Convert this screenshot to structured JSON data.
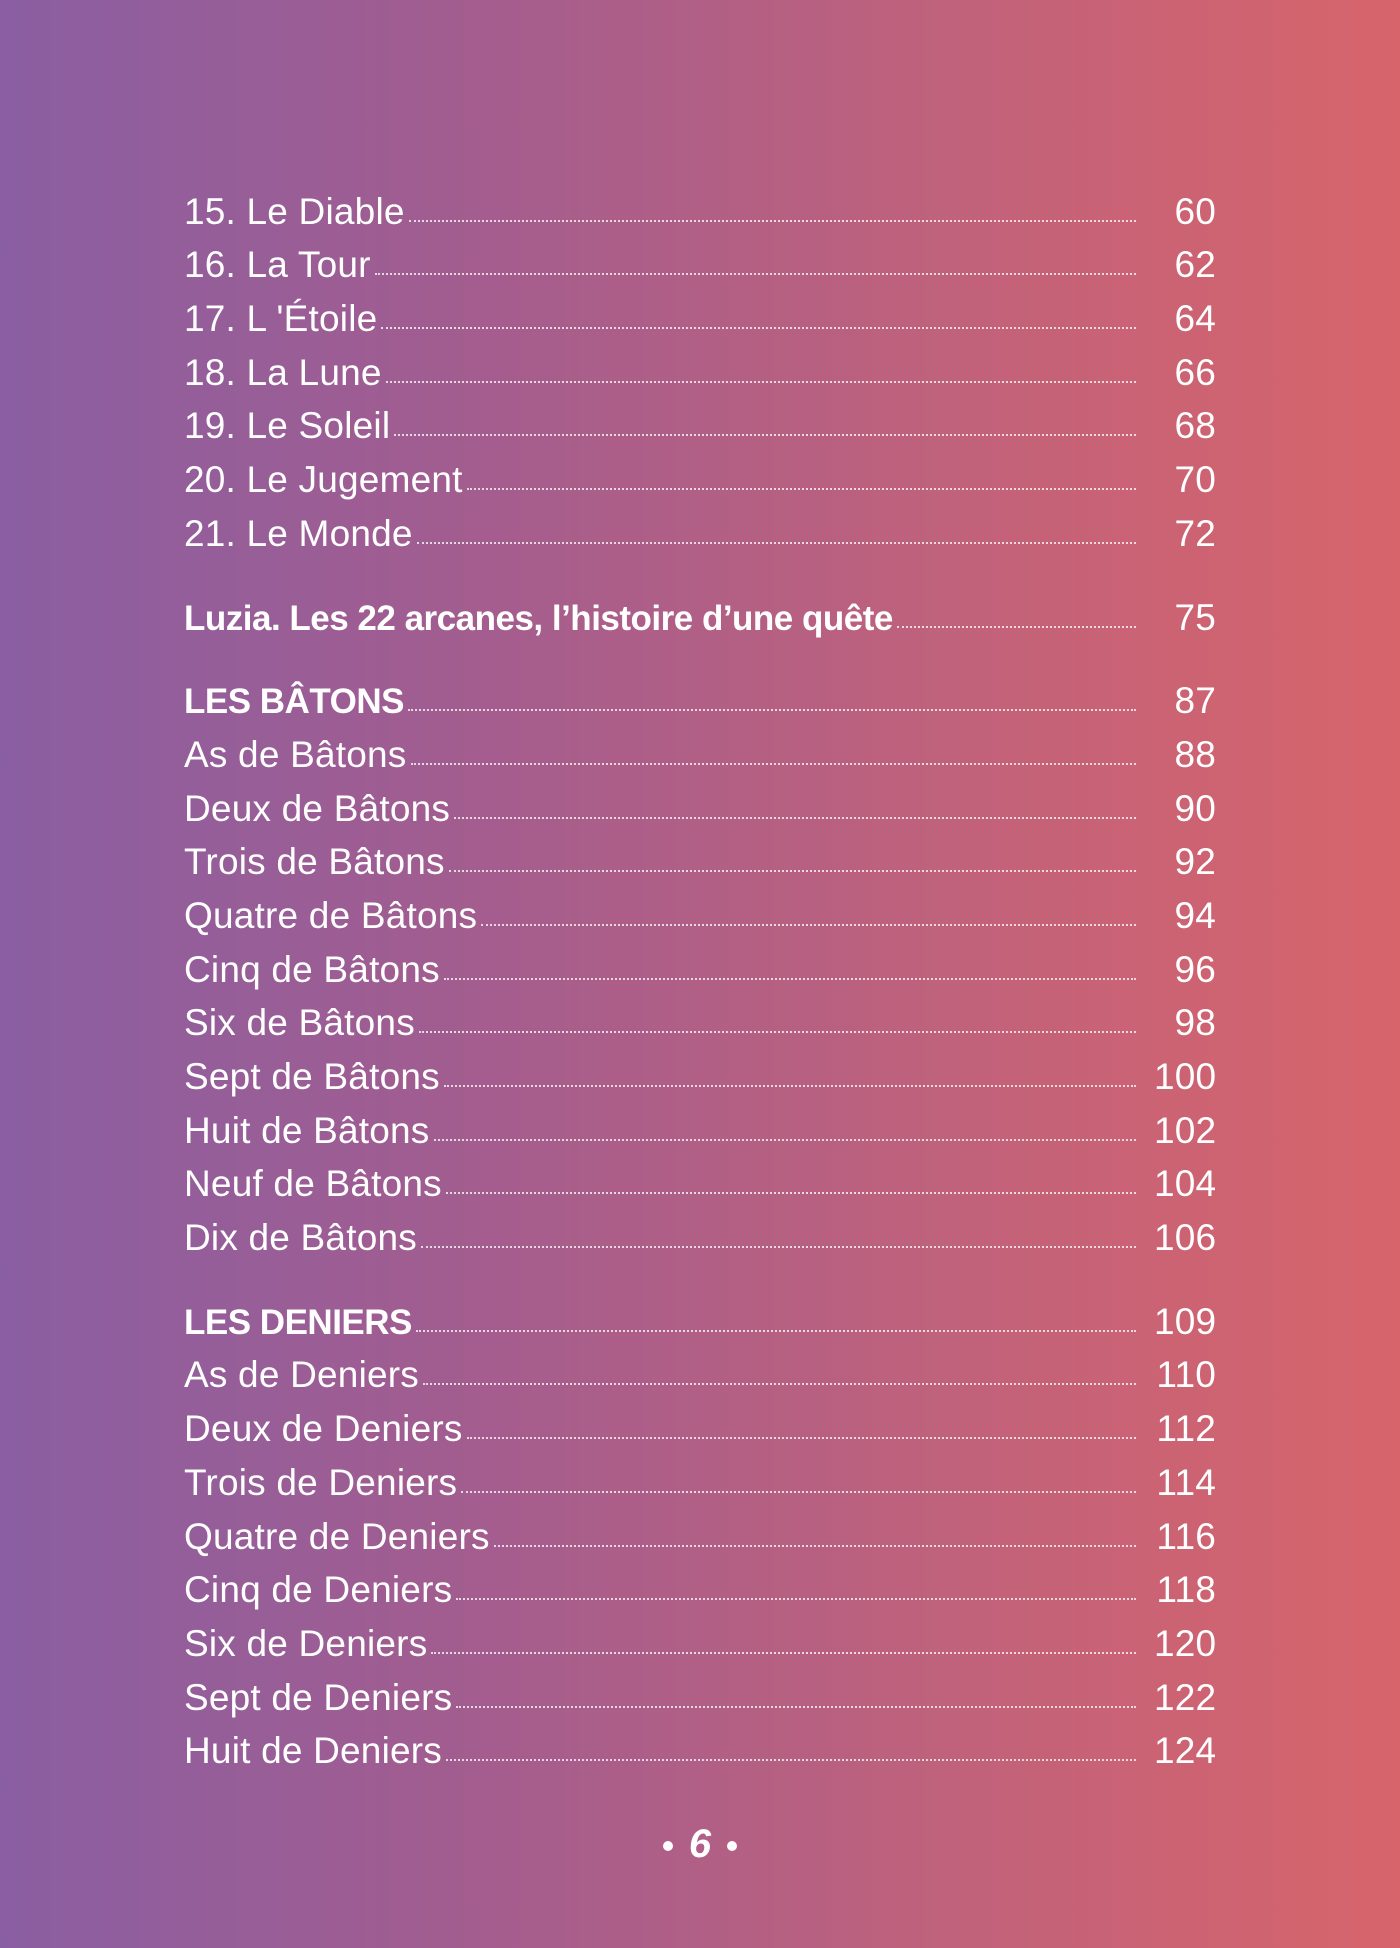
{
  "groups": [
    {
      "entries": [
        {
          "label": "15. Le Diable",
          "page": "60"
        },
        {
          "label": "16. La Tour",
          "page": "62"
        },
        {
          "label": "17. L 'Étoile",
          "page": "64"
        },
        {
          "label": "18. La Lune",
          "page": "66"
        },
        {
          "label": "19. Le Soleil",
          "page": "68"
        },
        {
          "label": "20. Le Jugement",
          "page": "70"
        },
        {
          "label": "21. Le Monde",
          "page": "72"
        }
      ]
    },
    {
      "heading": {
        "label": "Luzia. Les 22 arcanes, l’histoire d’une quête",
        "page": "75"
      },
      "entries": []
    },
    {
      "heading": {
        "label": "LES BÂTONS",
        "page": "87"
      },
      "entries": [
        {
          "label": "As de Bâtons",
          "page": "88"
        },
        {
          "label": "Deux de Bâtons",
          "page": "90"
        },
        {
          "label": "Trois de Bâtons",
          "page": "92"
        },
        {
          "label": "Quatre de Bâtons",
          "page": "94"
        },
        {
          "label": "Cinq de Bâtons",
          "page": "96"
        },
        {
          "label": "Six de Bâtons",
          "page": "98"
        },
        {
          "label": "Sept de Bâtons",
          "page": "100"
        },
        {
          "label": "Huit de Bâtons",
          "page": "102"
        },
        {
          "label": "Neuf de Bâtons",
          "page": "104"
        },
        {
          "label": "Dix de Bâtons",
          "page": "106"
        }
      ]
    },
    {
      "heading": {
        "label": "LES DENIERS",
        "page": "109"
      },
      "entries": [
        {
          "label": "As de Deniers",
          "page": "110"
        },
        {
          "label": "Deux de Deniers",
          "page": "112"
        },
        {
          "label": "Trois de Deniers",
          "page": "114"
        },
        {
          "label": "Quatre de Deniers",
          "page": "116"
        },
        {
          "label": "Cinq de Deniers",
          "page": "118"
        },
        {
          "label": "Six de Deniers",
          "page": "120"
        },
        {
          "label": "Sept de Deniers",
          "page": "122"
        },
        {
          "label": "Huit de Deniers",
          "page": "124"
        }
      ]
    }
  ],
  "folio": "6",
  "colors": {
    "gradient_left": "#8a5ea2",
    "gradient_right": "#d7646b",
    "text": "#ffffff"
  }
}
